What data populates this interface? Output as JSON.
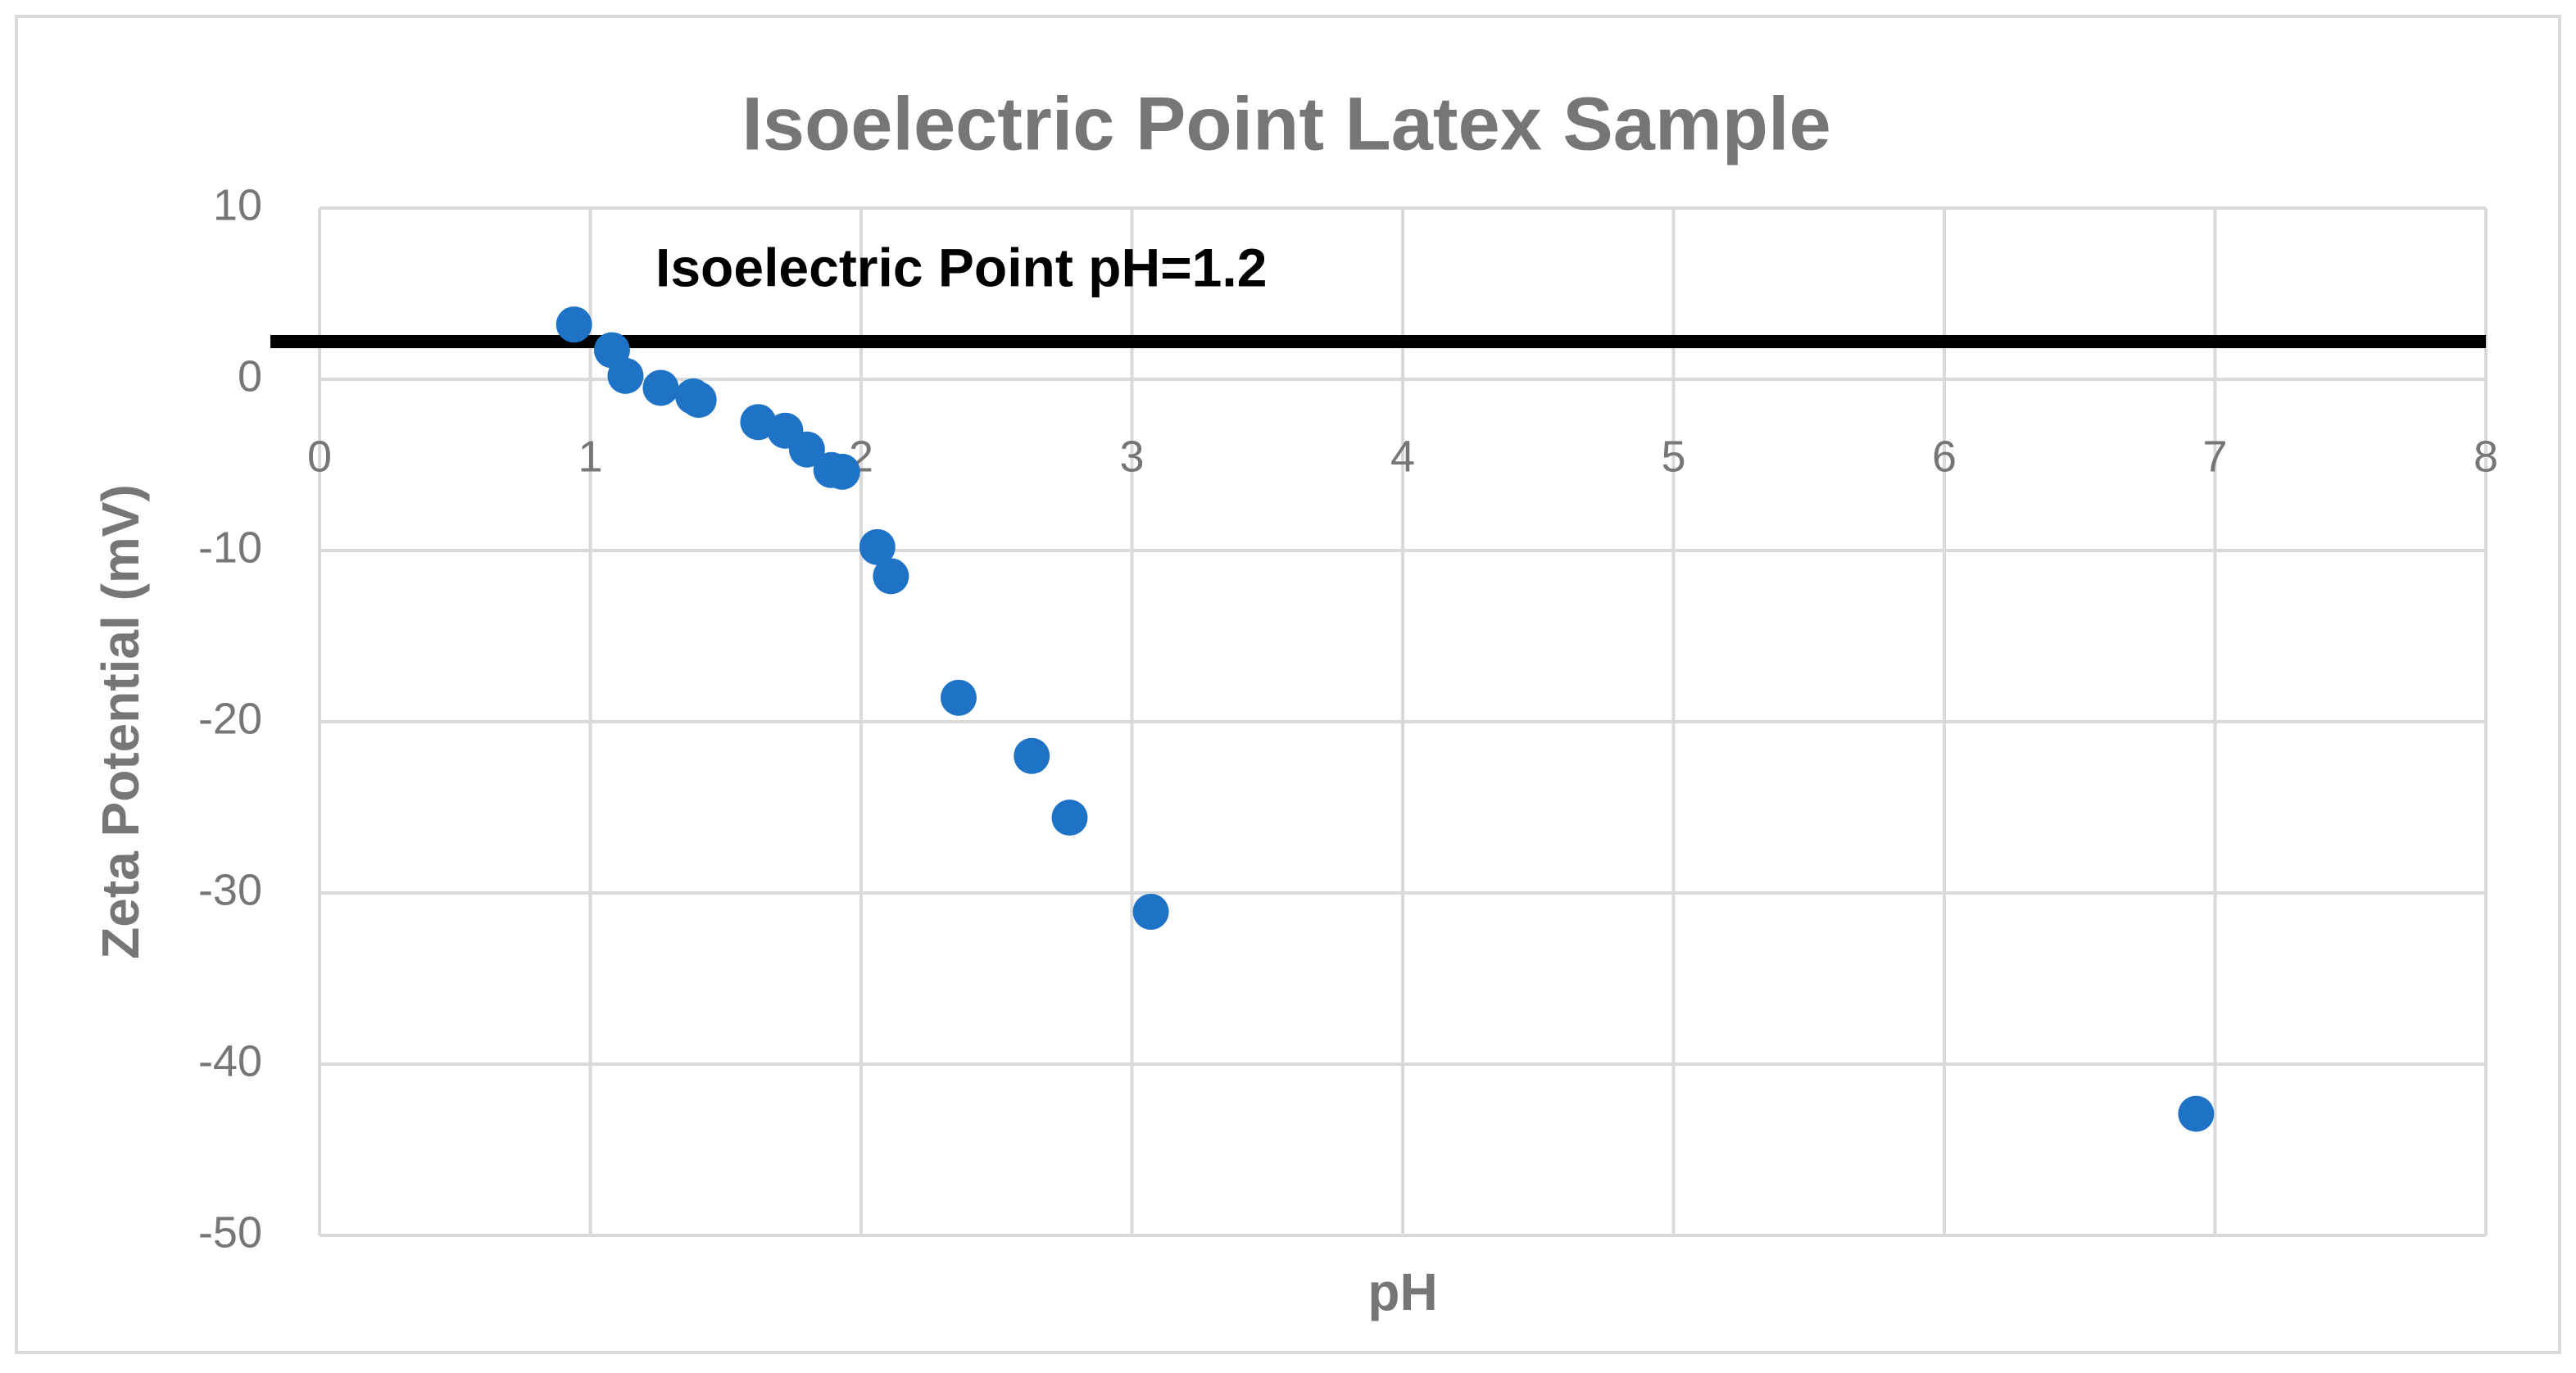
{
  "chart_data": {
    "type": "scatter",
    "title": "Isoelectric Point Latex Sample",
    "x_label": "pH",
    "y_label": "Zeta Potential (mV)",
    "annotation": "Isoelectric Point  pH=1.2",
    "hline": 2.2,
    "color": "#1f73c6",
    "x": [
      0.94,
      1.08,
      1.13,
      1.26,
      1.38,
      1.4,
      1.62,
      1.72,
      1.8,
      1.89,
      1.93,
      2.06,
      2.11,
      2.36,
      2.63,
      2.77,
      3.07,
      6.93
    ],
    "values": [
      3.2,
      1.7,
      0.2,
      -0.5,
      -1.0,
      -1.2,
      -2.5,
      -3.0,
      -4.1,
      -5.3,
      -5.4,
      -9.8,
      -11.5,
      -18.6,
      -22.0,
      -25.6,
      -31.1,
      -42.9
    ],
    "xlim": [
      0,
      8
    ],
    "xticks": [
      0,
      1,
      2,
      3,
      4,
      5,
      6,
      7,
      8
    ],
    "ylim": [
      -50,
      10
    ],
    "yticks": [
      -50,
      -40,
      -30,
      -20,
      -10,
      0,
      10
    ],
    "grid": true
  }
}
